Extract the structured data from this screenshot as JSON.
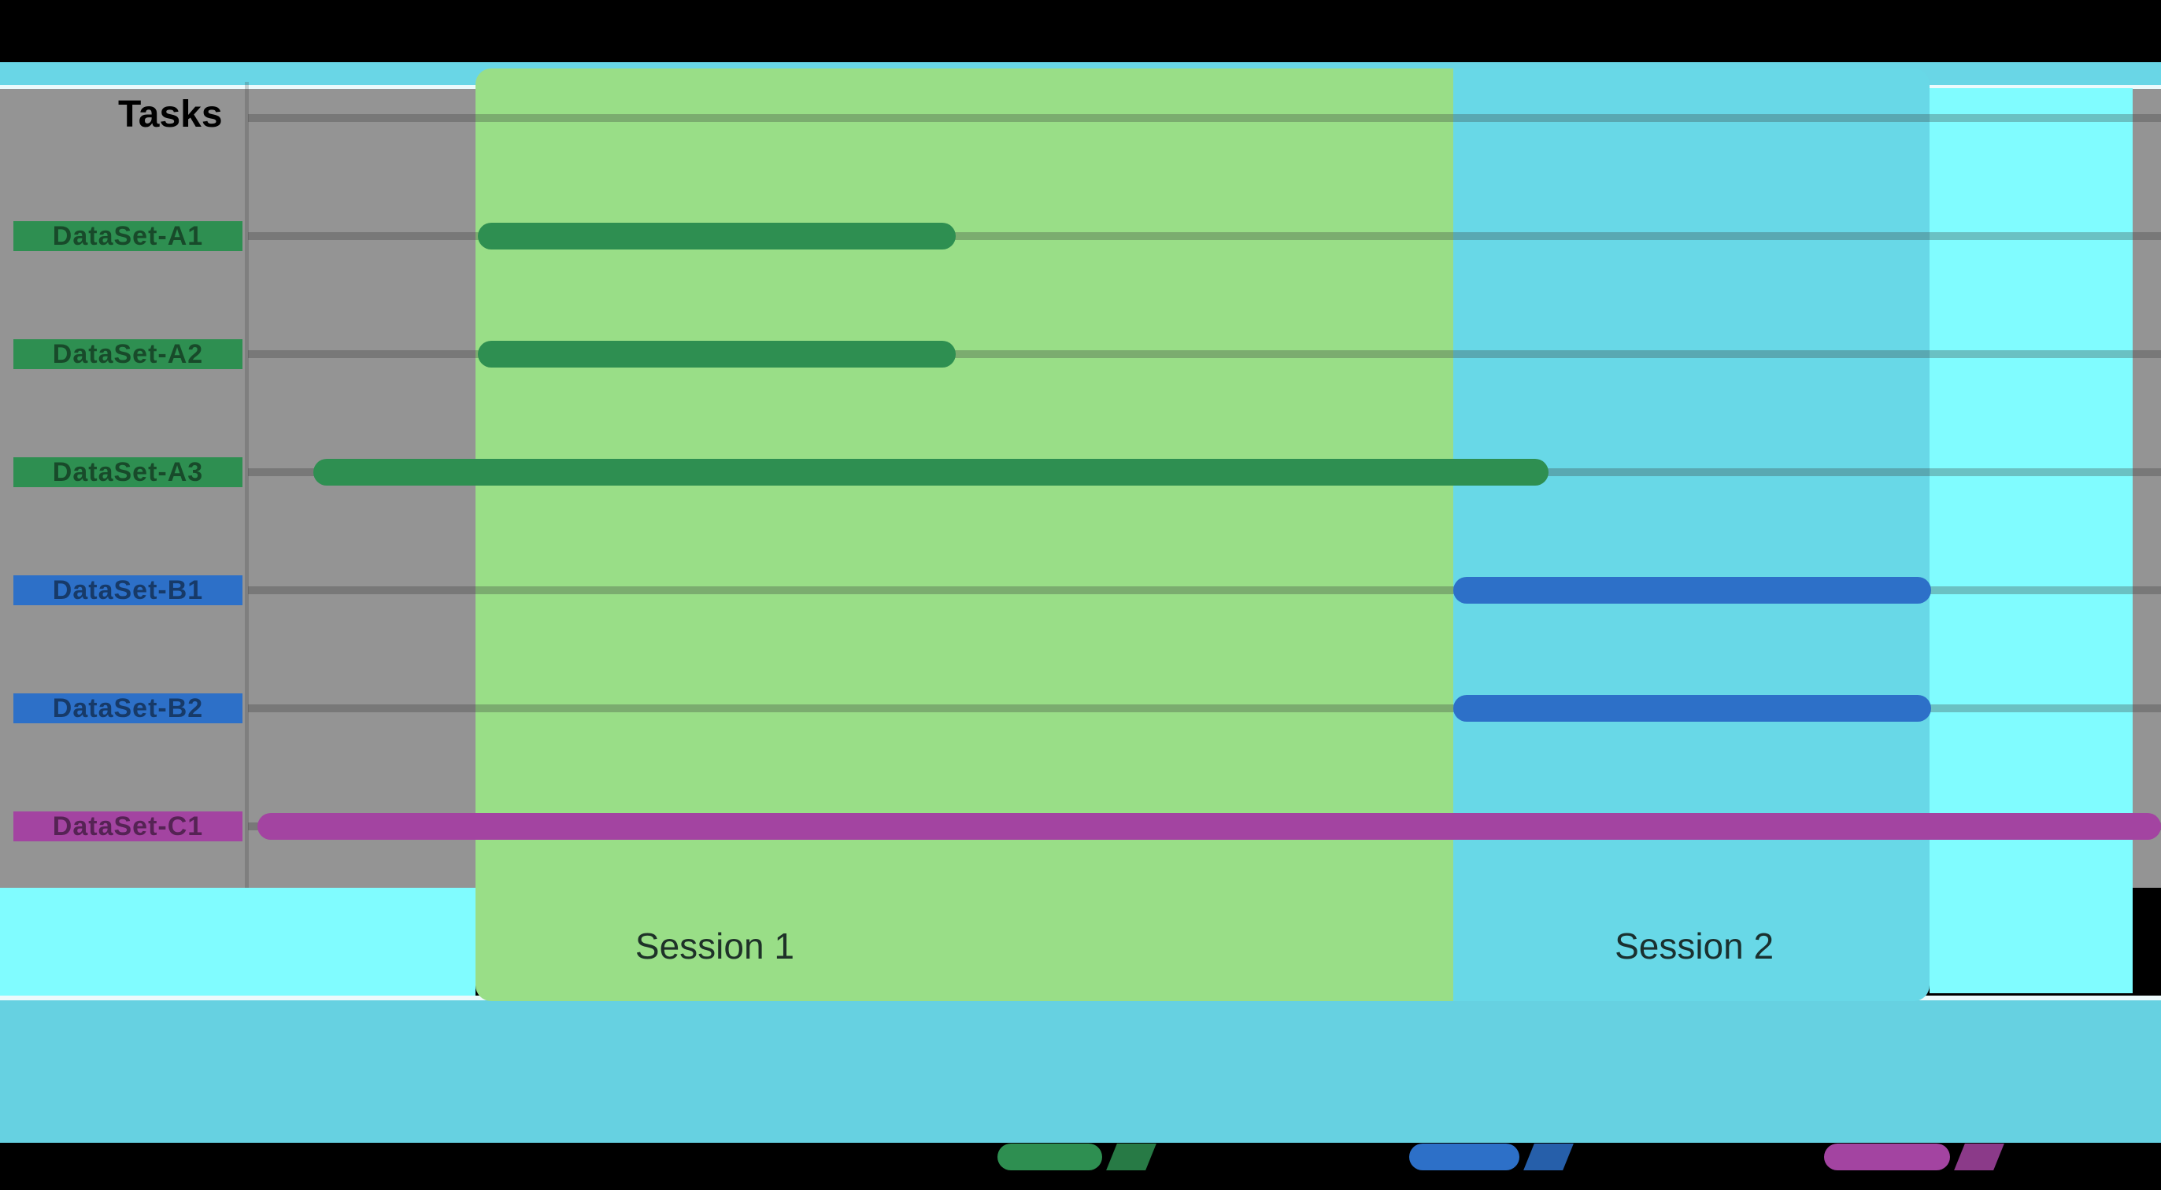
{
  "title": "Tasks",
  "colors": {
    "page_bg": "#000000",
    "plot_bg": "#949494",
    "top_strip": "#69D6E6",
    "strip_line": "#ECFAFC",
    "footer_band": "#66D1E1",
    "highlight_cyan": "#80FCFF",
    "gridline": "rgba(55,55,55,0.30)",
    "axis_line": "rgba(55,55,55,0.22)",
    "series_green": "#2E8F51",
    "series_blue": "#2D70C8",
    "series_magenta": "#A344A1",
    "band_session1": "#99DE87",
    "band_session2": "#68D8E7"
  },
  "chart_data": {
    "type": "gantt",
    "axis_title": "Tasks",
    "x_range_pct": [
      0,
      100
    ],
    "grid": true,
    "row_labels": [
      "DataSet-A1",
      "DataSet-A2",
      "DataSet-A3",
      "DataSet-B1",
      "DataSet-B2",
      "DataSet-C1"
    ],
    "rows": [
      {
        "label": "DataSet-A1",
        "group": "A",
        "color": "#2E8F51",
        "start": 12.0,
        "end": 37.0
      },
      {
        "label": "DataSet-A2",
        "group": "A",
        "color": "#2E8F51",
        "start": 12.0,
        "end": 37.0
      },
      {
        "label": "DataSet-A3",
        "group": "A",
        "color": "#2E8F51",
        "start": 3.4,
        "end": 68.0
      },
      {
        "label": "DataSet-B1",
        "group": "B",
        "color": "#2D70C8",
        "start": 63.0,
        "end": 88.0
      },
      {
        "label": "DataSet-B2",
        "group": "B",
        "color": "#2D70C8",
        "start": 63.0,
        "end": 88.0
      },
      {
        "label": "DataSet-C1",
        "group": "C",
        "color": "#A344A1",
        "start": 0.5,
        "end": 100.0
      }
    ],
    "bands": [
      {
        "label": "Session 1",
        "start": 11.9,
        "end": 63.0,
        "color": "#99DE87",
        "label_x_pct": 24.4,
        "position": "first"
      },
      {
        "label": "Session 2",
        "start": 63.0,
        "end": 87.9,
        "color": "#68D8E7",
        "label_x_pct": 75.6,
        "position": "last"
      },
      {
        "label": "",
        "start": 87.9,
        "end": 98.5,
        "color": "#80FCFF",
        "label_x_pct": null,
        "position": "column"
      }
    ],
    "legend": [
      {
        "label": "",
        "color": "#2E8F51"
      },
      {
        "label": "",
        "color": "#2D70C8"
      },
      {
        "label": "",
        "color": "#A344A1"
      }
    ]
  }
}
